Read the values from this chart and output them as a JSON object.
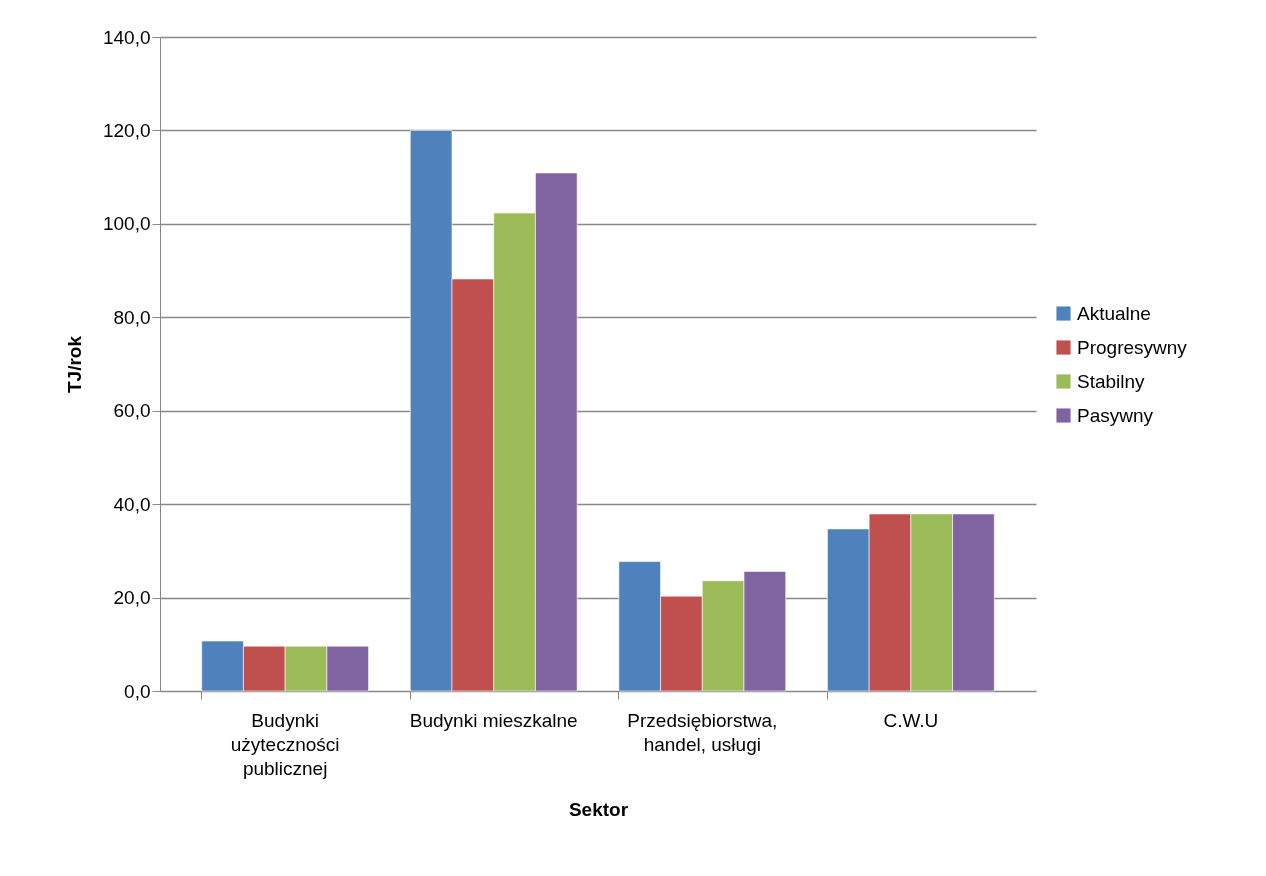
{
  "chart_data": {
    "type": "bar",
    "xlabel": "Sektor",
    "ylabel": "TJ/rok",
    "categories": [
      "Budynki użyteczności publicznej",
      "Budynki mieszkalne",
      "Przedsiębiorstwa, handel, usługi",
      "C.W.U"
    ],
    "series": [
      {
        "name": "Aktualne",
        "color": "#4f81bd",
        "values": [
          10.7,
          120.0,
          27.7,
          34.7
        ]
      },
      {
        "name": "Progresywny",
        "color": "#c0504d",
        "values": [
          9.6,
          88.2,
          20.3,
          37.9
        ]
      },
      {
        "name": "Stabilny",
        "color": "#9bbb59",
        "values": [
          9.6,
          102.3,
          23.6,
          37.9
        ]
      },
      {
        "name": "Pasywny",
        "color": "#8064a2",
        "values": [
          9.6,
          110.9,
          25.6,
          37.9
        ]
      }
    ],
    "ylim": [
      0,
      140
    ],
    "yticks": [
      {
        "value": 0,
        "label": "0,0"
      },
      {
        "value": 20,
        "label": "20,0"
      },
      {
        "value": 40,
        "label": "40,0"
      },
      {
        "value": 60,
        "label": "60,0"
      },
      {
        "value": 80,
        "label": "80,0"
      },
      {
        "value": 100,
        "label": "100,0"
      },
      {
        "value": 120,
        "label": "120,0"
      },
      {
        "value": 140,
        "label": "140,0"
      }
    ],
    "grid": "y",
    "legend": "right"
  }
}
